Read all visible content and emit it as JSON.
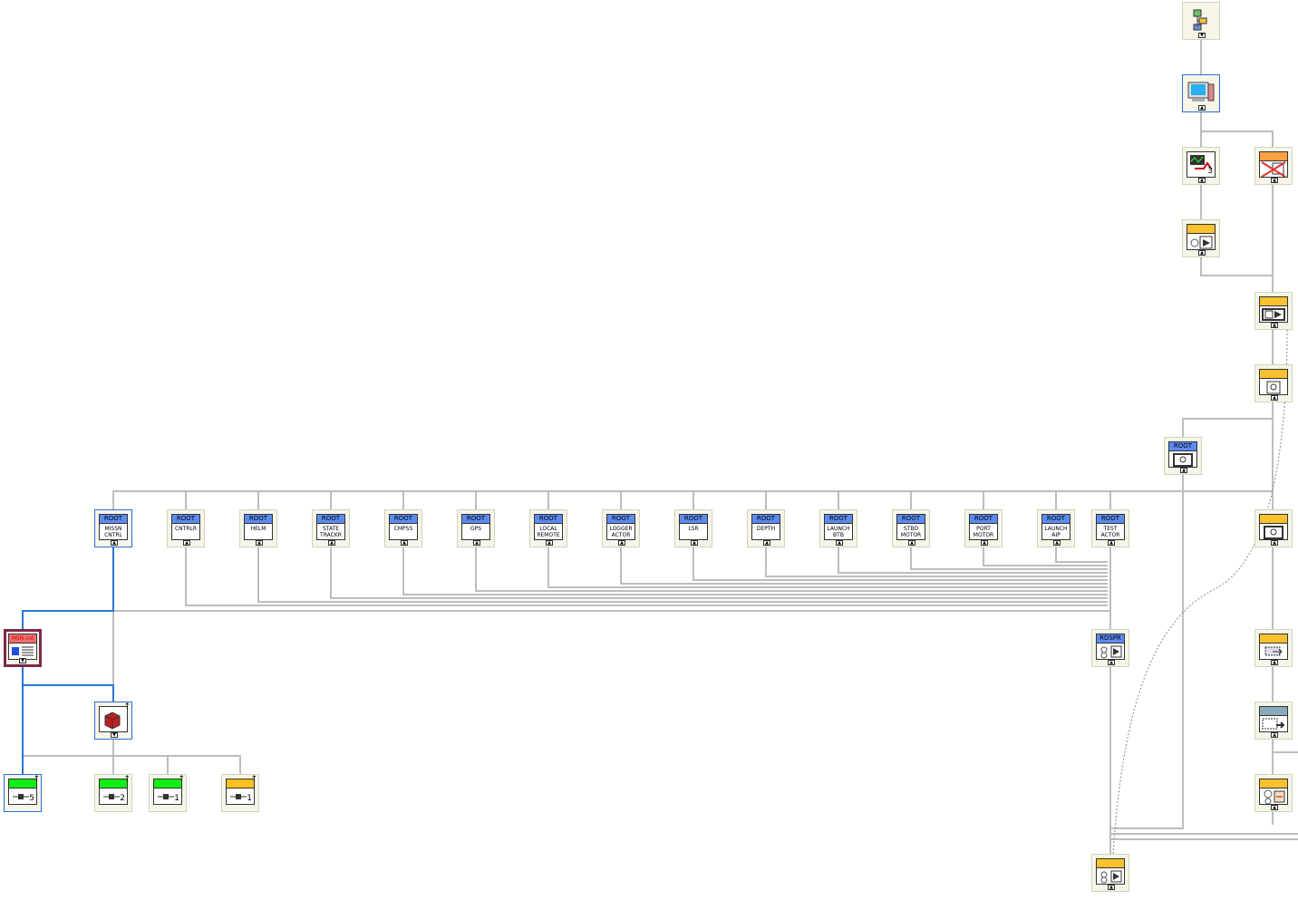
{
  "actors": [
    {
      "id": "missn",
      "label": "MISSN\nCNTRL"
    },
    {
      "id": "cntrlr",
      "label": "CNTRLR"
    },
    {
      "id": "helm",
      "label": "HELM"
    },
    {
      "id": "state",
      "label": "STATE\nTRACKR"
    },
    {
      "id": "cmpss",
      "label": "CMPSS"
    },
    {
      "id": "gps",
      "label": "GPS"
    },
    {
      "id": "local",
      "label": "LOCAL\nREMOTE"
    },
    {
      "id": "logger",
      "label": "LOGGER\nACTOR"
    },
    {
      "id": "lsr",
      "label": "LSR"
    },
    {
      "id": "depth",
      "label": "DEPTH"
    },
    {
      "id": "launchbtb",
      "label": "LAUNCH\nBTB"
    },
    {
      "id": "stbd",
      "label": "STBD\nMOTOR"
    },
    {
      "id": "port",
      "label": "PORT\nMOTOR"
    },
    {
      "id": "launchaip",
      "label": "LAUNCH\nAIP"
    },
    {
      "id": "test",
      "label": "TEST\nACTOR"
    }
  ],
  "root_label": "ROOT",
  "msn_label": "MSN cnt",
  "rdspr_label": "RDSPR",
  "counters": [
    "5",
    "2",
    "1",
    "1"
  ],
  "monitor_number": "3",
  "colors": {
    "wire": "#bdbdbd",
    "wire_blue": "#2878d0",
    "root_header": "#5c8cf0",
    "yellow_header": "#f9c22e",
    "msn_border": "#7b2a4a"
  }
}
